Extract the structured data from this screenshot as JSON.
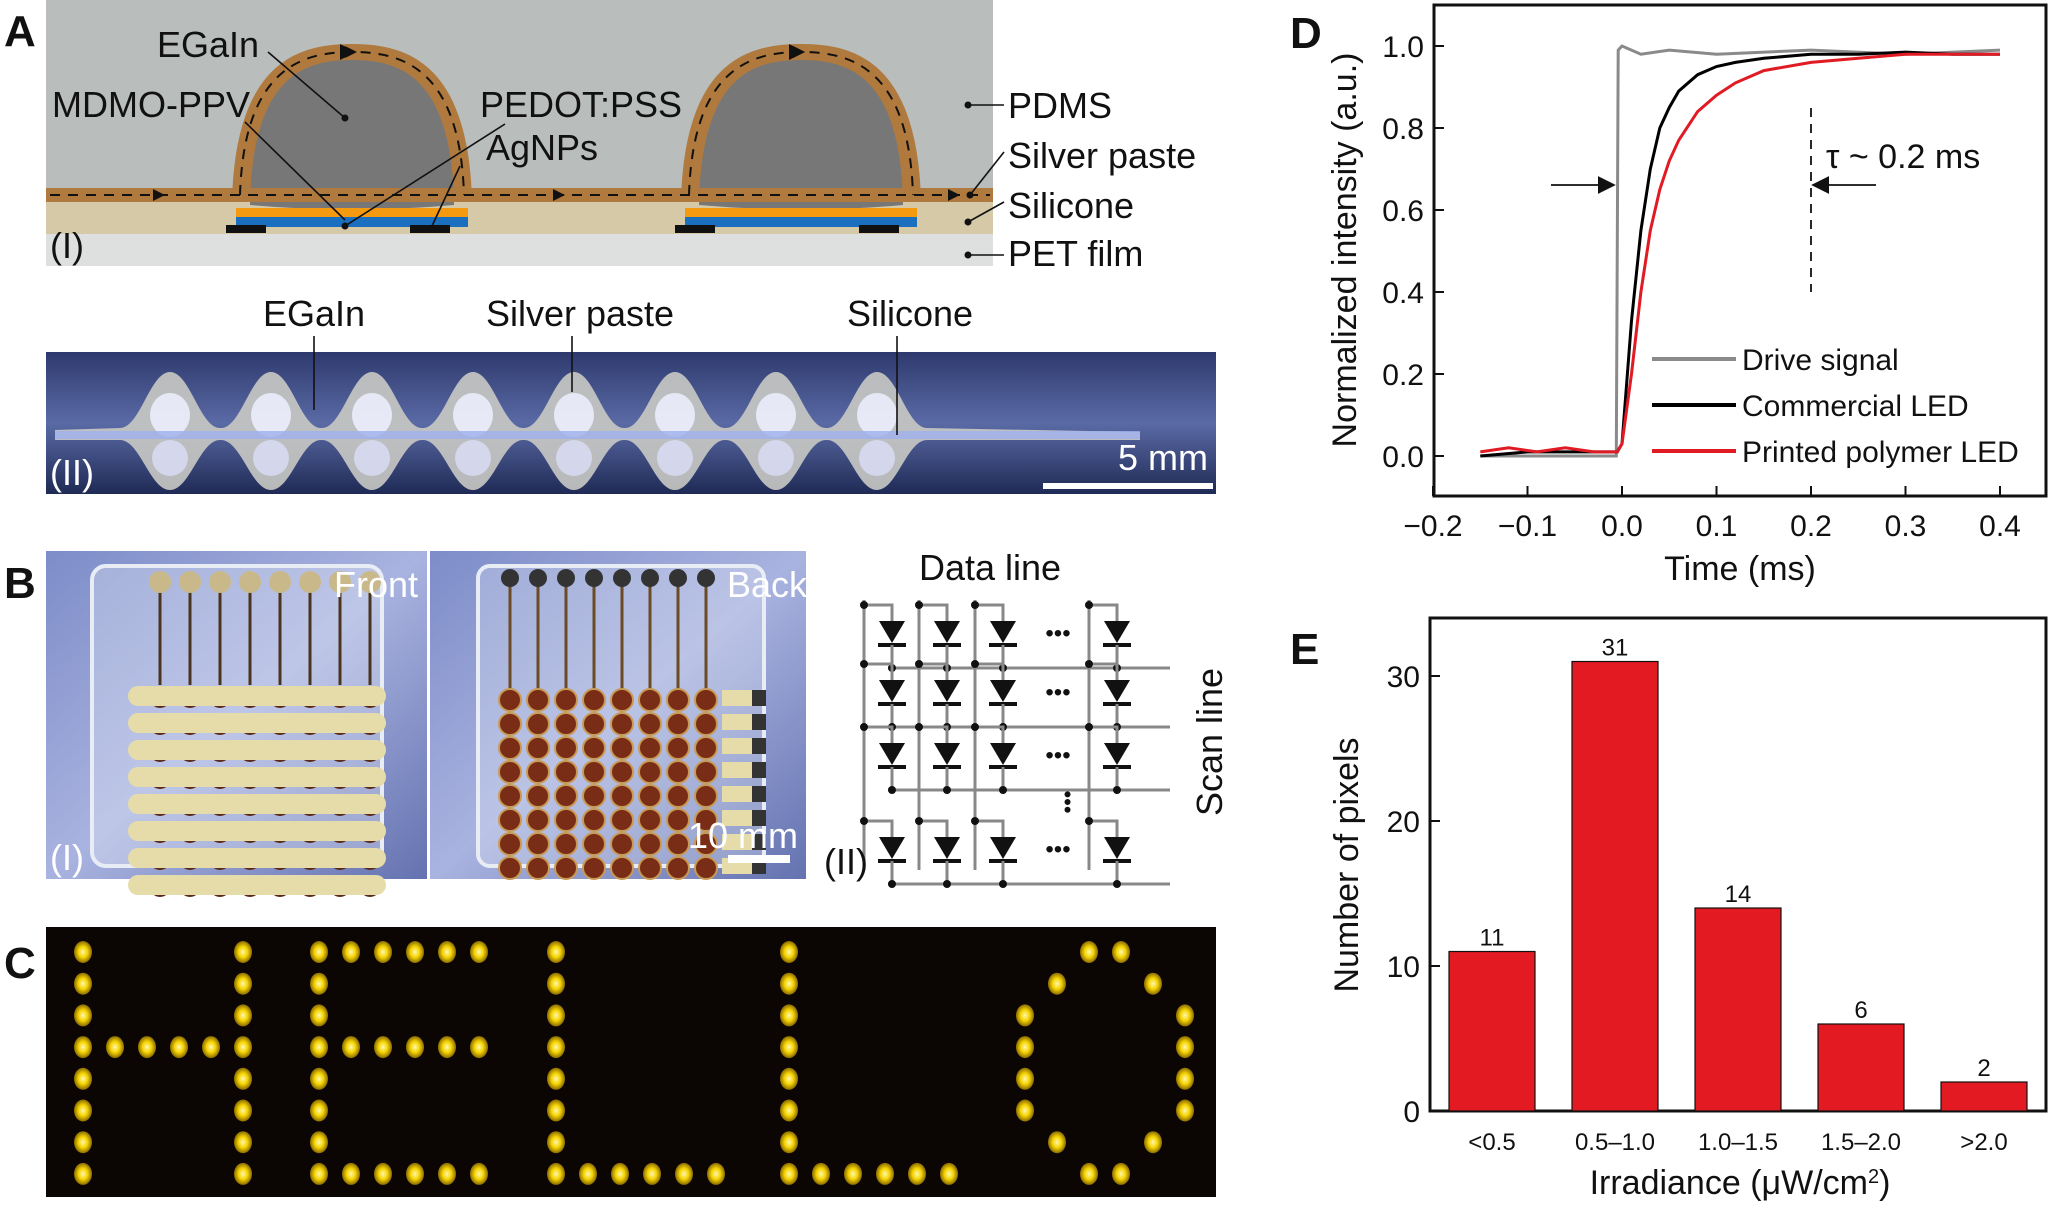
{
  "panels": {
    "a": "A",
    "b": "B",
    "c": "C",
    "d": "D",
    "e": "E"
  },
  "panel_a": {
    "sub1": "(I)",
    "sub2": "(II)",
    "labels": {
      "egain": "EGaIn",
      "mdmo": "MDMO-PPV",
      "pedot": "PEDOT:PSS",
      "agnps": "AgNPs",
      "pdms": "PDMS",
      "silver_paste": "Silver paste",
      "silicone": "Silicone",
      "pet": "PET film"
    },
    "photo_labels": {
      "egain": "EGaIn",
      "silver_paste": "Silver paste",
      "silicone": "Silicone"
    },
    "scale_bar": "5 mm",
    "colors": {
      "pdms": "#b9bdbc",
      "silver_paste": "#b07a3e",
      "egain": "#777777",
      "silicone": "#d6c9a8",
      "pet": "#dde0df",
      "pedot": "#f39a10",
      "agnps": "#1a6fbf"
    }
  },
  "panel_b": {
    "sub1": "(I)",
    "sub2": "(II)",
    "front": "Front",
    "back": "Back",
    "scale_bar": "10 mm",
    "data_line": "Data line",
    "scan_line": "Scan line",
    "ellipsis": "•••"
  },
  "chart_data": [
    {
      "type": "line",
      "panel": "D",
      "xlabel": "Time (ms)",
      "ylabel": "Normalized intensity (a.u.)",
      "xlim": [
        -0.2,
        0.45
      ],
      "ylim": [
        -0.1,
        1.1
      ],
      "xticks": [
        "−0.2",
        "−0.1",
        "0.0",
        "0.1",
        "0.2",
        "0.3",
        "0.4"
      ],
      "xtick_values": [
        -0.2,
        -0.1,
        0.0,
        0.1,
        0.2,
        0.3,
        0.4
      ],
      "yticks": [
        "0.0",
        "0.2",
        "0.4",
        "0.6",
        "0.8",
        "1.0"
      ],
      "ytick_values": [
        0,
        0.2,
        0.4,
        0.6,
        0.8,
        1.0
      ],
      "legend_position": "bottom-right",
      "annotation": "τ ~ 0.2 ms",
      "annotation_x": 0.2,
      "series": [
        {
          "name": "Drive signal",
          "color": "#8a8a8a",
          "x": [
            -0.15,
            -0.006,
            -0.004,
            0.0,
            0.02,
            0.05,
            0.1,
            0.2,
            0.3,
            0.4
          ],
          "y": [
            0.0,
            0.0,
            0.99,
            1.0,
            0.98,
            0.99,
            0.98,
            0.99,
            0.98,
            0.99
          ]
        },
        {
          "name": "Commercial LED",
          "color": "#000000",
          "x": [
            -0.15,
            -0.1,
            -0.05,
            -0.005,
            0.0,
            0.01,
            0.02,
            0.03,
            0.04,
            0.05,
            0.06,
            0.08,
            0.1,
            0.12,
            0.15,
            0.2,
            0.25,
            0.3,
            0.35,
            0.4
          ],
          "y": [
            0.0,
            0.01,
            0.01,
            0.01,
            0.03,
            0.33,
            0.55,
            0.7,
            0.8,
            0.85,
            0.89,
            0.93,
            0.95,
            0.96,
            0.97,
            0.98,
            0.98,
            0.985,
            0.98,
            0.98
          ]
        },
        {
          "name": "Printed polymer LED",
          "color": "#e01b24",
          "x": [
            -0.15,
            -0.12,
            -0.09,
            -0.06,
            -0.03,
            -0.005,
            0.0,
            0.01,
            0.02,
            0.03,
            0.04,
            0.05,
            0.06,
            0.08,
            0.1,
            0.12,
            0.15,
            0.2,
            0.25,
            0.3,
            0.35,
            0.4
          ],
          "y": [
            0.01,
            0.02,
            0.01,
            0.02,
            0.01,
            0.01,
            0.03,
            0.2,
            0.4,
            0.55,
            0.65,
            0.72,
            0.77,
            0.84,
            0.88,
            0.91,
            0.94,
            0.96,
            0.97,
            0.98,
            0.98,
            0.98
          ]
        }
      ]
    },
    {
      "type": "bar",
      "panel": "E",
      "xlabel": "Irradiance (μW/cm",
      "xlabel_sup": "2",
      "xlabel_end": ")",
      "ylabel": "Number of pixels",
      "categories": [
        "<0.5",
        "0.5–1.0",
        "1.0–1.5",
        "1.5–2.0",
        ">2.0"
      ],
      "values": [
        11,
        31,
        14,
        6,
        2
      ],
      "data_labels": [
        "11",
        "31",
        "14",
        "6",
        "2"
      ],
      "ylim": [
        0,
        34
      ],
      "yticks": [
        "0",
        "10",
        "20",
        "30"
      ],
      "ytick_values": [
        0,
        10,
        20,
        30
      ],
      "color": "#e31a22"
    }
  ]
}
